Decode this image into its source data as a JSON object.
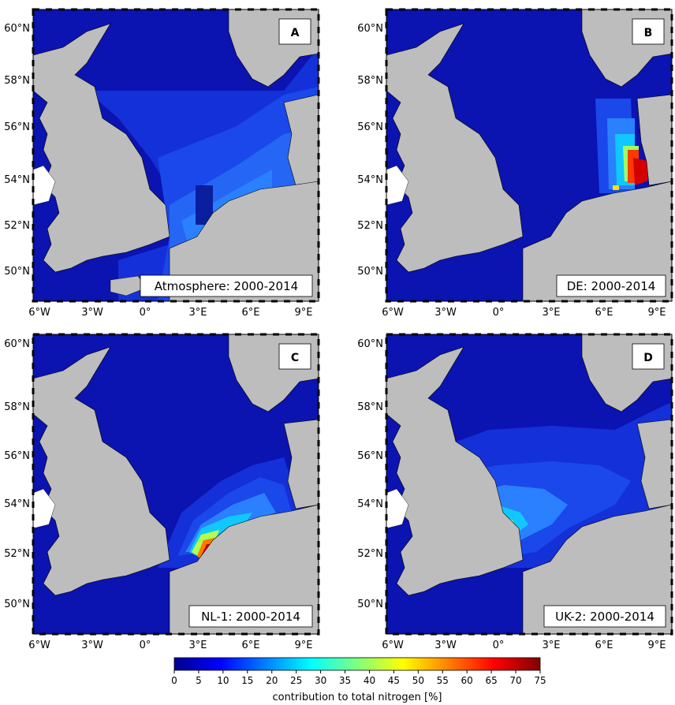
{
  "colors": {
    "sea_base": "#0b13b0",
    "land": "#bdbdbd",
    "frame": "#000000",
    "label_box": "#ffffff"
  },
  "axes": {
    "lon_ticks": [
      "6°W",
      "3°W",
      "0°",
      "3°E",
      "6°E",
      "9°E"
    ],
    "lat_ticks": [
      "60°N",
      "58°N",
      "56°N",
      "54°N",
      "52°N",
      "50°N"
    ],
    "lon_range": [
      -6,
      10
    ],
    "lat_range": [
      48.6,
      61.2
    ]
  },
  "panels": [
    {
      "letter": "A",
      "caption": "Atmosphere: 2000-2014"
    },
    {
      "letter": "B",
      "caption": "DE: 2000-2014"
    },
    {
      "letter": "C",
      "caption": "NL-1: 2000-2014"
    },
    {
      "letter": "D",
      "caption": "UK-2: 2000-2014"
    }
  ],
  "colorbar": {
    "ticks": [
      "0",
      "5",
      "10",
      "15",
      "20",
      "25",
      "30",
      "35",
      "40",
      "45",
      "50",
      "55",
      "60",
      "65",
      "70",
      "75"
    ],
    "label": "contribution to total nitrogen [%]",
    "min": 0,
    "max": 75,
    "colormap": "jet"
  }
}
